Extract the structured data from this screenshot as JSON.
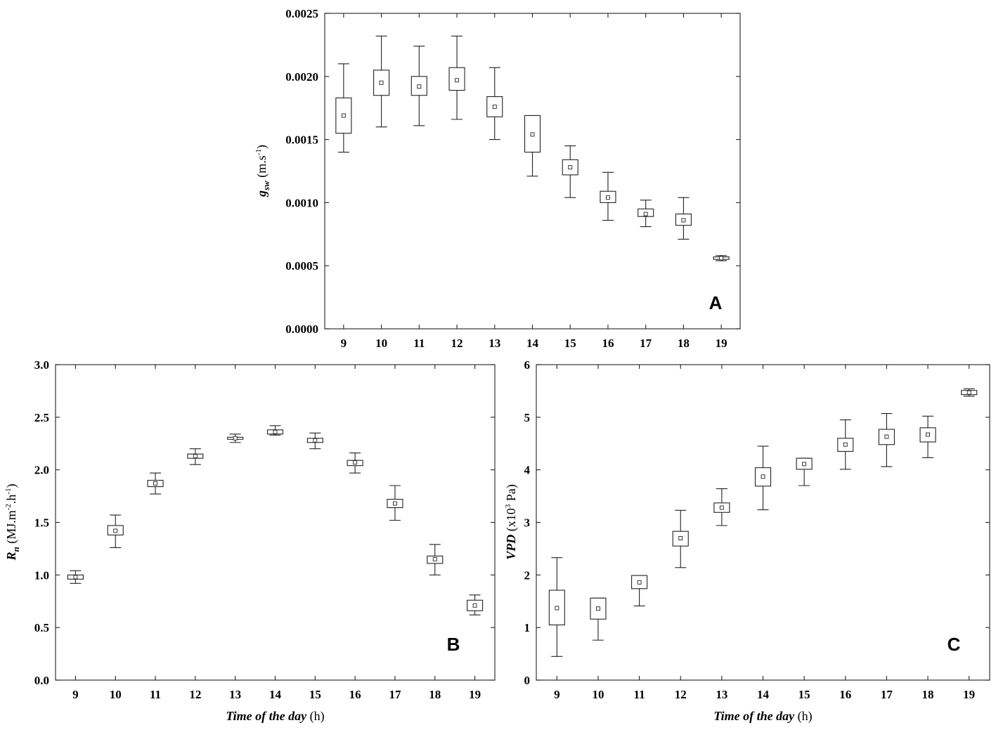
{
  "chart_data": [
    {
      "panel": "A",
      "type": "boxplot",
      "x": [
        9,
        10,
        11,
        12,
        13,
        14,
        15,
        16,
        17,
        18,
        19
      ],
      "ylim": [
        0,
        0.0025
      ],
      "yticks": [
        "0.0000",
        "0.0005",
        "0.0010",
        "0.0015",
        "0.0020",
        "0.0025"
      ],
      "xticks": [
        "9",
        "10",
        "11",
        "12",
        "13",
        "14",
        "15",
        "16",
        "17",
        "18",
        "19"
      ],
      "ylabel": {
        "sym": "g",
        "sub": "sw",
        "unit_pre": " (m.s",
        "unit_sup": "-1",
        "unit_post": ")"
      },
      "xlabel": null,
      "median": [
        0.00169,
        0.00195,
        0.00192,
        0.00197,
        0.00176,
        0.00154,
        0.00128,
        0.00104,
        0.00091,
        0.00086,
        0.00056
      ],
      "q1": [
        0.00155,
        0.00185,
        0.00185,
        0.00189,
        0.00168,
        0.0014,
        0.00122,
        0.001,
        0.00089,
        0.00082,
        0.00055
      ],
      "q3": [
        0.00183,
        0.00205,
        0.002,
        0.00207,
        0.00184,
        0.00169,
        0.00134,
        0.00109,
        0.00095,
        0.00091,
        0.00057
      ],
      "whisker_low": [
        0.0014,
        0.0016,
        0.00161,
        0.00166,
        0.0015,
        0.00121,
        0.00104,
        0.00086,
        0.00081,
        0.00071,
        0.00054
      ],
      "whisker_high": [
        0.0021,
        0.00232,
        0.00224,
        0.00232,
        0.00207,
        0.00169,
        0.00145,
        0.00124,
        0.00102,
        0.00104,
        0.00058
      ]
    },
    {
      "panel": "B",
      "type": "boxplot",
      "x": [
        9,
        10,
        11,
        12,
        13,
        14,
        15,
        16,
        17,
        18,
        19
      ],
      "ylim": [
        0,
        3
      ],
      "yticks": [
        "0.0",
        "0.5",
        "1.0",
        "1.5",
        "2.0",
        "2.5",
        "3.0"
      ],
      "xticks": [
        "9",
        "10",
        "11",
        "12",
        "13",
        "14",
        "15",
        "16",
        "17",
        "18",
        "19"
      ],
      "ylabel": {
        "sym": "R",
        "sub": "n",
        "unit_pre": " (MJ.m",
        "unit_sup": "-2",
        "unit_mid": ".h",
        "unit_sup2": "-1",
        "unit_post": ")"
      },
      "xlabel": {
        "italic": "Time of the day",
        "rest": " (h)"
      },
      "median": [
        0.98,
        1.42,
        1.87,
        2.13,
        2.3,
        2.36,
        2.28,
        2.07,
        1.68,
        1.15,
        0.71
      ],
      "q1": [
        0.96,
        1.38,
        1.84,
        2.11,
        2.29,
        2.34,
        2.26,
        2.04,
        1.64,
        1.11,
        0.66
      ],
      "q3": [
        1.0,
        1.47,
        1.9,
        2.15,
        2.31,
        2.38,
        2.3,
        2.09,
        1.72,
        1.18,
        0.76
      ],
      "whisker_low": [
        0.92,
        1.26,
        1.77,
        2.05,
        2.26,
        2.33,
        2.2,
        1.97,
        1.52,
        1.0,
        0.62
      ],
      "whisker_high": [
        1.04,
        1.57,
        1.97,
        2.2,
        2.34,
        2.42,
        2.35,
        2.16,
        1.85,
        1.29,
        0.81
      ]
    },
    {
      "panel": "C",
      "type": "boxplot",
      "x": [
        9,
        10,
        11,
        12,
        13,
        14,
        15,
        16,
        17,
        18,
        19
      ],
      "ylim": [
        0,
        6
      ],
      "yticks": [
        "0",
        "1",
        "2",
        "3",
        "4",
        "5",
        "6"
      ],
      "xticks": [
        "9",
        "10",
        "11",
        "12",
        "13",
        "14",
        "15",
        "16",
        "17",
        "18",
        "19"
      ],
      "ylabel": {
        "sym": "VPD",
        "sub": "",
        "unit_pre": " (x10",
        "unit_sup": "3",
        "unit_post": " Pa)"
      },
      "xlabel": {
        "italic": "Time of the day",
        "rest": " (h)"
      },
      "median": [
        1.37,
        1.36,
        1.86,
        2.7,
        3.28,
        3.87,
        4.11,
        4.48,
        4.63,
        4.67,
        5.47
      ],
      "q1": [
        1.05,
        1.16,
        1.74,
        2.55,
        3.19,
        3.69,
        4.01,
        4.35,
        4.48,
        4.53,
        5.43
      ],
      "q3": [
        1.71,
        1.56,
        1.99,
        2.83,
        3.37,
        4.04,
        4.22,
        4.6,
        4.77,
        4.8,
        5.51
      ],
      "whisker_low": [
        0.45,
        0.76,
        1.41,
        2.14,
        2.94,
        3.24,
        3.7,
        4.01,
        4.06,
        4.23,
        5.4
      ],
      "whisker_high": [
        2.33,
        1.56,
        1.99,
        3.23,
        3.64,
        4.45,
        4.22,
        4.95,
        5.07,
        5.02,
        5.54
      ]
    }
  ]
}
